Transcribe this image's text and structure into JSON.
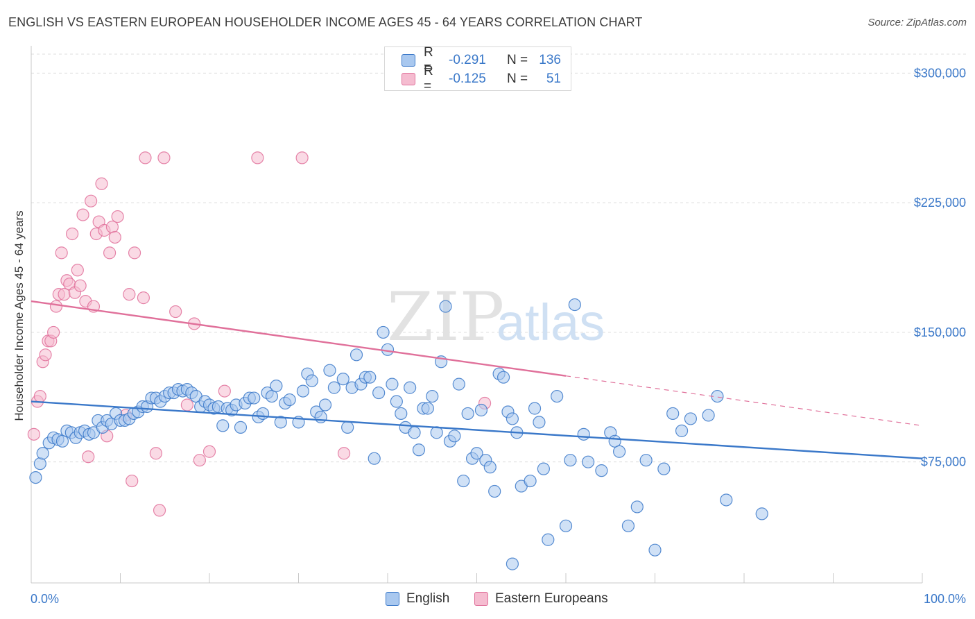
{
  "title": "ENGLISH VS EASTERN EUROPEAN HOUSEHOLDER INCOME AGES 45 - 64 YEARS CORRELATION CHART",
  "source": "Source: ZipAtlas.com",
  "watermark": {
    "zip": "ZIP",
    "atlas": "atlas"
  },
  "colors": {
    "english": "#3a78c9",
    "english_fill": "#a9c8ef",
    "eastern": "#e0709a",
    "eastern_fill": "#f5bcd0",
    "axis_text": "#3a78c9",
    "grid": "#dcdcdc"
  },
  "legend": {
    "rows": [
      {
        "r_label": "R =",
        "r_value": "-0.291",
        "n_label": "N =",
        "n_value": "136"
      },
      {
        "r_label": "R =",
        "r_value": "-0.125",
        "n_label": "N =",
        "n_value": "51"
      }
    ]
  },
  "bottom_legend": {
    "english": "English",
    "eastern": "Eastern Europeans"
  },
  "chart_data": {
    "type": "scatter",
    "title": "ENGLISH VS EASTERN EUROPEAN HOUSEHOLDER INCOME AGES 45 - 64 YEARS CORRELATION CHART",
    "xlabel": "",
    "ylabel": "Householder Income Ages 45 - 64 years",
    "xlim": [
      0,
      100
    ],
    "ylim": [
      5000,
      311000
    ],
    "x_tick_labels": [
      "0.0%",
      "100.0%"
    ],
    "y_ticks": [
      75000,
      150000,
      225000,
      300000
    ],
    "y_tick_labels": [
      "$75,000",
      "$150,000",
      "$225,000",
      "$300,000"
    ],
    "grid": true,
    "legend_position": "top-center",
    "series": [
      {
        "name": "English",
        "color": "#3a78c9",
        "trend": {
          "x": [
            0,
            100
          ],
          "y": [
            110000,
            77000
          ],
          "dashed_from": null
        },
        "points": [
          [
            0.5,
            66000
          ],
          [
            1,
            74000
          ],
          [
            1.3,
            80000
          ],
          [
            2,
            86000
          ],
          [
            2.5,
            89000
          ],
          [
            3,
            88000
          ],
          [
            3.5,
            87000
          ],
          [
            4,
            93000
          ],
          [
            4.5,
            92000
          ],
          [
            5,
            89000
          ],
          [
            5.5,
            92000
          ],
          [
            6,
            93000
          ],
          [
            6.5,
            91000
          ],
          [
            7,
            92000
          ],
          [
            7.5,
            99000
          ],
          [
            8,
            95000
          ],
          [
            8.5,
            99000
          ],
          [
            9,
            97000
          ],
          [
            9.5,
            103000
          ],
          [
            10,
            99000
          ],
          [
            10.5,
            99000
          ],
          [
            11,
            100000
          ],
          [
            11.5,
            103000
          ],
          [
            12,
            104000
          ],
          [
            12.5,
            107000
          ],
          [
            13,
            107000
          ],
          [
            13.5,
            112000
          ],
          [
            14,
            112000
          ],
          [
            14.5,
            110000
          ],
          [
            15,
            113000
          ],
          [
            15.5,
            115000
          ],
          [
            16,
            115000
          ],
          [
            16.5,
            117000
          ],
          [
            17,
            116000
          ],
          [
            17.5,
            117000
          ],
          [
            18,
            115000
          ],
          [
            18.5,
            113000
          ],
          [
            19,
            107000
          ],
          [
            19.5,
            110000
          ],
          [
            20,
            108000
          ],
          [
            20.5,
            106000
          ],
          [
            21,
            107000
          ],
          [
            21.5,
            96000
          ],
          [
            22,
            106000
          ],
          [
            22.5,
            105000
          ],
          [
            23,
            108000
          ],
          [
            23.5,
            95000
          ],
          [
            24,
            109000
          ],
          [
            24.5,
            112000
          ],
          [
            25,
            112000
          ],
          [
            25.5,
            101000
          ],
          [
            26,
            103000
          ],
          [
            26.5,
            115000
          ],
          [
            27,
            113000
          ],
          [
            27.5,
            119000
          ],
          [
            28,
            98000
          ],
          [
            28.5,
            109000
          ],
          [
            29,
            111000
          ],
          [
            30,
            98000
          ],
          [
            30.5,
            116000
          ],
          [
            31,
            126000
          ],
          [
            31.5,
            122000
          ],
          [
            32,
            104000
          ],
          [
            32.5,
            101000
          ],
          [
            33,
            108000
          ],
          [
            33.5,
            128000
          ],
          [
            34,
            118000
          ],
          [
            35,
            123000
          ],
          [
            35.5,
            95000
          ],
          [
            36,
            118000
          ],
          [
            36.5,
            137000
          ],
          [
            37,
            120000
          ],
          [
            37.5,
            124000
          ],
          [
            38,
            124000
          ],
          [
            38.5,
            77000
          ],
          [
            39,
            115000
          ],
          [
            39.5,
            150000
          ],
          [
            40,
            140000
          ],
          [
            40.5,
            120000
          ],
          [
            41,
            110000
          ],
          [
            41.5,
            103000
          ],
          [
            42,
            95000
          ],
          [
            42.5,
            118000
          ],
          [
            43,
            92000
          ],
          [
            43.5,
            82000
          ],
          [
            44,
            106000
          ],
          [
            44.5,
            106000
          ],
          [
            45,
            113000
          ],
          [
            45.5,
            92000
          ],
          [
            46,
            133000
          ],
          [
            46.5,
            165000
          ],
          [
            47,
            87000
          ],
          [
            47.5,
            90000
          ],
          [
            48,
            120000
          ],
          [
            48.5,
            64000
          ],
          [
            49,
            103000
          ],
          [
            49.5,
            77000
          ],
          [
            50,
            80000
          ],
          [
            50.5,
            105000
          ],
          [
            51,
            76000
          ],
          [
            51.5,
            72000
          ],
          [
            52,
            58000
          ],
          [
            52.5,
            126000
          ],
          [
            53,
            124000
          ],
          [
            53.5,
            104000
          ],
          [
            54,
            100000
          ],
          [
            54.5,
            92000
          ],
          [
            55,
            61000
          ],
          [
            56,
            64000
          ],
          [
            56.5,
            106000
          ],
          [
            57,
            98000
          ],
          [
            57.5,
            71000
          ],
          [
            58,
            30000
          ],
          [
            59,
            113000
          ],
          [
            60,
            38000
          ],
          [
            60.5,
            76000
          ],
          [
            61,
            166000
          ],
          [
            62,
            91000
          ],
          [
            62.5,
            75000
          ],
          [
            64,
            70000
          ],
          [
            65,
            92000
          ],
          [
            65.5,
            87000
          ],
          [
            66,
            81000
          ],
          [
            67,
            38000
          ],
          [
            68,
            49000
          ],
          [
            69,
            76000
          ],
          [
            70,
            24000
          ],
          [
            71,
            71000
          ],
          [
            72,
            103000
          ],
          [
            73,
            93000
          ],
          [
            74,
            100000
          ],
          [
            76,
            102000
          ],
          [
            77,
            113000
          ],
          [
            78,
            53000
          ],
          [
            82,
            45000
          ],
          [
            54,
            16000
          ]
        ]
      },
      {
        "name": "Eastern Europeans",
        "color": "#e0709a",
        "trend": {
          "x": [
            0,
            100
          ],
          "y": [
            168000,
            96000
          ],
          "dashed_from": 60
        },
        "points": [
          [
            0.3,
            91000
          ],
          [
            0.7,
            110000
          ],
          [
            1,
            113000
          ],
          [
            1.3,
            133000
          ],
          [
            1.6,
            137000
          ],
          [
            1.9,
            145000
          ],
          [
            2.2,
            145000
          ],
          [
            2.5,
            150000
          ],
          [
            2.8,
            165000
          ],
          [
            3.1,
            172000
          ],
          [
            3.4,
            196000
          ],
          [
            3.7,
            172000
          ],
          [
            4,
            180000
          ],
          [
            4.3,
            178000
          ],
          [
            4.6,
            207000
          ],
          [
            4.9,
            173000
          ],
          [
            5.2,
            186000
          ],
          [
            5.5,
            177000
          ],
          [
            5.8,
            218000
          ],
          [
            6.1,
            168000
          ],
          [
            6.4,
            78000
          ],
          [
            6.7,
            226000
          ],
          [
            7,
            165000
          ],
          [
            7.3,
            207000
          ],
          [
            7.6,
            214000
          ],
          [
            7.9,
            236000
          ],
          [
            8.2,
            209000
          ],
          [
            8.5,
            90000
          ],
          [
            8.8,
            196000
          ],
          [
            9.1,
            211000
          ],
          [
            9.4,
            205000
          ],
          [
            9.7,
            217000
          ],
          [
            10.6,
            102000
          ],
          [
            11,
            172000
          ],
          [
            11.3,
            64000
          ],
          [
            11.6,
            196000
          ],
          [
            12.6,
            170000
          ],
          [
            12.8,
            251000
          ],
          [
            14,
            80000
          ],
          [
            14.4,
            47000
          ],
          [
            14.9,
            251000
          ],
          [
            16.2,
            162000
          ],
          [
            17.5,
            108000
          ],
          [
            18.3,
            155000
          ],
          [
            18.9,
            76000
          ],
          [
            20,
            81000
          ],
          [
            21.7,
            116000
          ],
          [
            25.4,
            251000
          ],
          [
            30.4,
            251000
          ],
          [
            35.1,
            80000
          ],
          [
            50.9,
            109000
          ]
        ]
      }
    ]
  }
}
